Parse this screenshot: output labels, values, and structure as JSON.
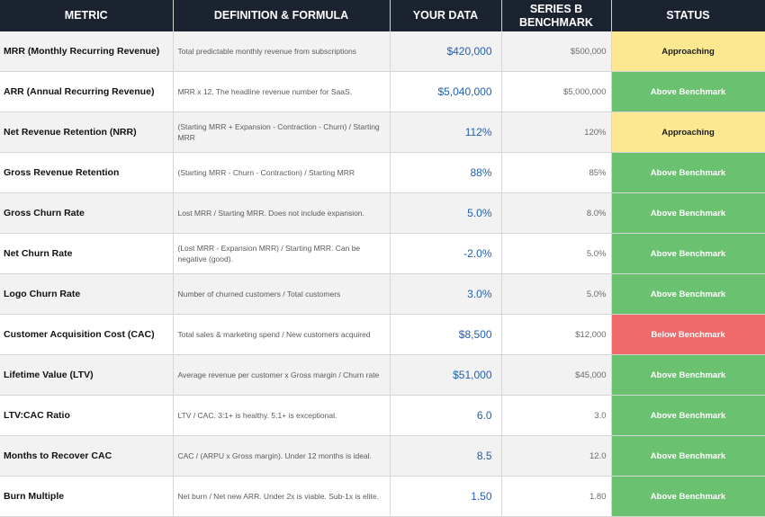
{
  "header": {
    "metric": "METRIC",
    "definition": "DEFINITION & FORMULA",
    "your_data": "YOUR DATA",
    "benchmark": "SERIES B BENCHMARK",
    "status": "STATUS"
  },
  "colors": {
    "header_bg": "#1b2331",
    "approaching": "#fbe891",
    "above_benchmark": "#6ac271",
    "below_benchmark": "#ef6b6b",
    "value_blue": "#1f5fb0"
  },
  "rows": [
    {
      "metric": "MRR (Monthly Recurring Revenue)",
      "definition": "Total predictable monthly revenue from subscriptions",
      "your_data": "$420,000",
      "benchmark": "$500,000",
      "status": "Approaching",
      "status_kind": "approaching"
    },
    {
      "metric": "ARR (Annual Recurring Revenue)",
      "definition": "MRR x 12. The headline revenue number for SaaS.",
      "your_data": "$5,040,000",
      "benchmark": "$5,000,000",
      "status": "Above Benchmark",
      "status_kind": "above"
    },
    {
      "metric": "Net Revenue Retention (NRR)",
      "definition": "(Starting MRR + Expansion - Contraction - Churn) / Starting MRR",
      "your_data": "112%",
      "benchmark": "120%",
      "status": "Approaching",
      "status_kind": "approaching"
    },
    {
      "metric": "Gross Revenue Retention",
      "definition": "(Starting MRR - Churn - Contraction) / Starting MRR",
      "your_data": "88%",
      "benchmark": "85%",
      "status": "Above Benchmark",
      "status_kind": "above"
    },
    {
      "metric": "Gross Churn Rate",
      "definition": "Lost MRR / Starting MRR. Does not include expansion.",
      "your_data": "5.0%",
      "benchmark": "8.0%",
      "status": "Above Benchmark",
      "status_kind": "above"
    },
    {
      "metric": "Net Churn Rate",
      "definition": "(Lost MRR - Expansion MRR) / Starting MRR. Can be negative (good).",
      "your_data": "-2.0%",
      "benchmark": "5.0%",
      "status": "Above Benchmark",
      "status_kind": "above"
    },
    {
      "metric": "Logo Churn Rate",
      "definition": "Number of churned customers / Total customers",
      "your_data": "3.0%",
      "benchmark": "5.0%",
      "status": "Above Benchmark",
      "status_kind": "above"
    },
    {
      "metric": "Customer Acquisition Cost (CAC)",
      "definition": "Total sales & marketing spend / New customers acquired",
      "your_data": "$8,500",
      "benchmark": "$12,000",
      "status": "Below Benchmark",
      "status_kind": "below"
    },
    {
      "metric": "Lifetime Value (LTV)",
      "definition": "Average revenue per customer x Gross margin / Churn rate",
      "your_data": "$51,000",
      "benchmark": "$45,000",
      "status": "Above Benchmark",
      "status_kind": "above"
    },
    {
      "metric": "LTV:CAC Ratio",
      "definition": "LTV / CAC. 3:1+ is healthy. 5:1+ is exceptional.",
      "your_data": "6.0",
      "benchmark": "3.0",
      "status": "Above Benchmark",
      "status_kind": "above"
    },
    {
      "metric": "Months to Recover CAC",
      "definition": "CAC / (ARPU x Gross margin). Under 12 months is ideal.",
      "your_data": "8.5",
      "benchmark": "12.0",
      "status": "Above Benchmark",
      "status_kind": "above"
    },
    {
      "metric": "Burn Multiple",
      "definition": "Net burn / Net new ARR. Under 2x is viable. Sub-1x is elite.",
      "your_data": "1.50",
      "benchmark": "1.80",
      "status": "Above Benchmark",
      "status_kind": "above"
    }
  ]
}
